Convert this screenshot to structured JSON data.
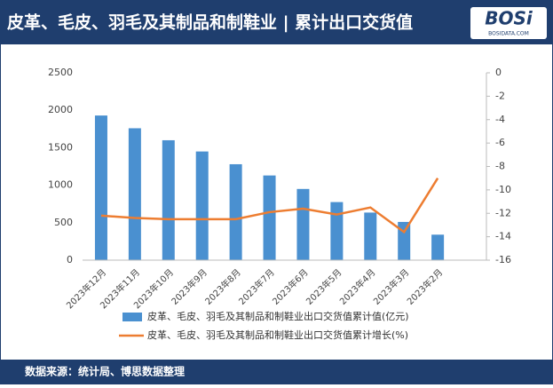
{
  "header": {
    "title": "皮革、毛皮、羽毛及其制品和制鞋业 | 累计出口交货值",
    "logo": "BOSi",
    "logo_sub": "BOSIDATA.COM"
  },
  "chart_data": {
    "type": "bar",
    "categories": [
      "2023年12月",
      "2023年11月",
      "2023年10月",
      "2023年9月",
      "2023年8月",
      "2023年7月",
      "2023年6月",
      "2023年5月",
      "2023年4月",
      "2023年3月",
      "2023年2月"
    ],
    "series": [
      {
        "name": "皮革、毛皮、羽毛及其制品和制鞋业出口交货值累计值(亿元)",
        "type": "bar",
        "color": "#4a90d0",
        "values": [
          1930,
          1760,
          1600,
          1450,
          1280,
          1130,
          950,
          775,
          635,
          510,
          340
        ]
      },
      {
        "name": "皮革、毛皮、羽毛及其制品和制鞋业出口交货值累计增长(%)",
        "type": "line",
        "axis": "y2",
        "color": "#ed7d31",
        "values": [
          -12.2,
          -12.4,
          -12.5,
          -12.5,
          -12.5,
          -11.9,
          -11.6,
          -12.1,
          -11.5,
          -13.6,
          -9.0
        ]
      }
    ],
    "ylim": [
      0,
      2500
    ],
    "yticks": [
      0,
      500,
      1000,
      1500,
      2000,
      2500
    ],
    "y2lim": [
      -16,
      0
    ],
    "y2ticks": [
      0,
      -2,
      -4,
      -6,
      -8,
      -10,
      -12,
      -14,
      -16
    ]
  },
  "footer": {
    "source": "数据来源：统计局、博思数据整理"
  }
}
